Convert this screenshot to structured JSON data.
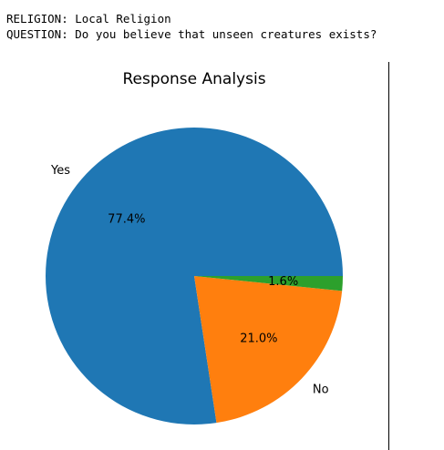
{
  "output": {
    "religion_line": "RELIGION: Local Religion",
    "question_line": "QUESTION: Do you believe that unseen creatures exists?"
  },
  "chart_data": {
    "type": "pie",
    "title": "Response Analysis",
    "categories": [
      "Yes",
      "No",
      ""
    ],
    "values": [
      77.4,
      21.0,
      1.6
    ],
    "percent_labels": [
      "77.4%",
      "21.0%",
      "1.6%"
    ],
    "colors": [
      "#1f77b4",
      "#ff7f0e",
      "#2ca02c"
    ],
    "start_angle_deg": 0,
    "direction": "counterclockwise"
  }
}
